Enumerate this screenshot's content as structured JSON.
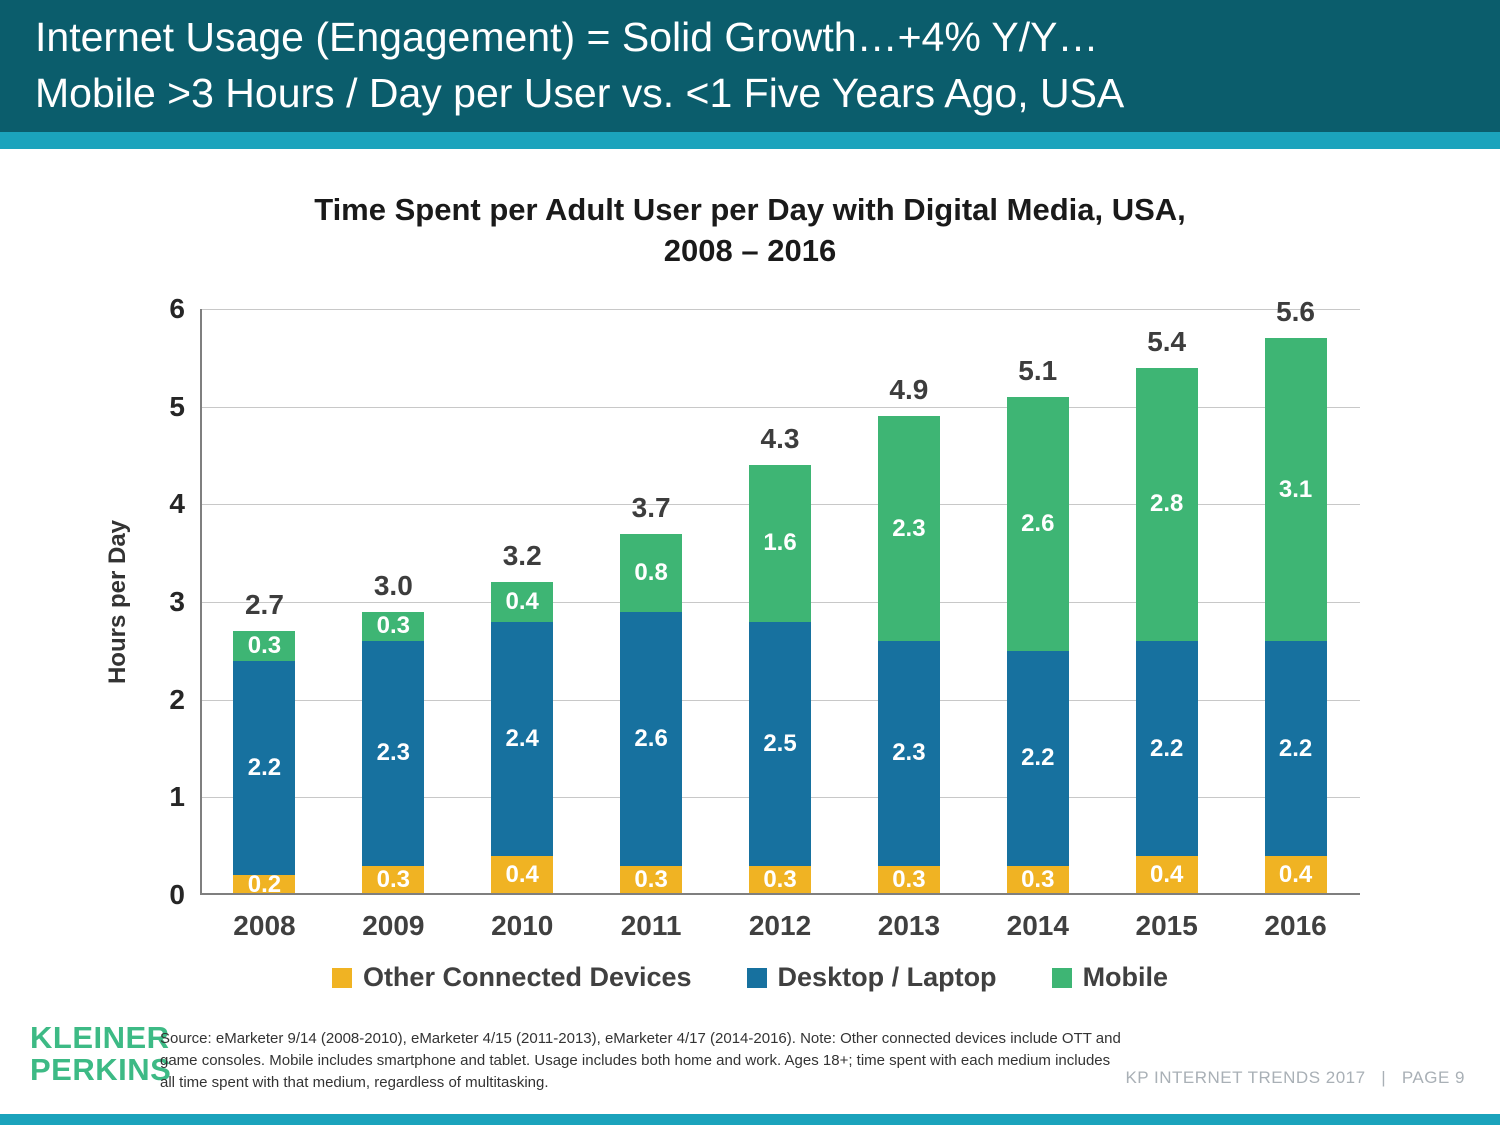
{
  "header": {
    "line1": "Internet Usage (Engagement) = Solid Growth…+4% Y/Y…",
    "line2": "Mobile >3 Hours / Day per User vs. <1 Five Years Ago, USA"
  },
  "colors": {
    "header_teal": "#0B5D6C",
    "accent_teal": "#1BA3BC",
    "logo_green": "#3DBA85"
  },
  "chart_data": {
    "type": "bar",
    "stacked": true,
    "title_line1": "Time Spent per Adult User per Day with Digital Media, USA,",
    "title_line2": "2008 – 2016",
    "xlabel": "",
    "ylabel": "Hours per Day",
    "ylim": [
      0,
      6
    ],
    "y_ticks": [
      0,
      1,
      2,
      3,
      4,
      5,
      6
    ],
    "grid": "horizontal",
    "legend_position": "bottom",
    "categories": [
      "2008",
      "2009",
      "2010",
      "2011",
      "2012",
      "2013",
      "2014",
      "2015",
      "2016"
    ],
    "series": [
      {
        "key": "other",
        "name": "Other Connected Devices",
        "color": "#F0B323",
        "values": [
          0.2,
          0.3,
          0.4,
          0.3,
          0.3,
          0.3,
          0.3,
          0.4,
          0.4
        ]
      },
      {
        "key": "desktop",
        "name": "Desktop / Laptop",
        "color": "#17719F",
        "values": [
          2.2,
          2.3,
          2.4,
          2.6,
          2.5,
          2.3,
          2.2,
          2.2,
          2.2
        ]
      },
      {
        "key": "mobile",
        "name": "Mobile",
        "color": "#3EB574",
        "values": [
          0.3,
          0.3,
          0.4,
          0.8,
          1.6,
          2.3,
          2.6,
          2.8,
          3.1
        ]
      }
    ],
    "totals": [
      2.7,
      3.0,
      3.2,
      3.7,
      4.3,
      4.9,
      5.1,
      5.4,
      5.6
    ]
  },
  "footer": {
    "logo_line1": "KLEINER",
    "logo_line2": "PERKINS",
    "source_lines": [
      "Source: eMarketer 9/14 (2008-2010), eMarketer 4/15 (2011-2013), eMarketer 4/17 (2014-2016). Note: Other connected devices include OTT and",
      "game consoles. Mobile includes smartphone and tablet. Usage includes both home and work. Ages 18+; time spent with each medium includes",
      "all time spent with that medium, regardless of multitasking."
    ],
    "page_info": "KP INTERNET TRENDS 2017   |   PAGE 9"
  }
}
